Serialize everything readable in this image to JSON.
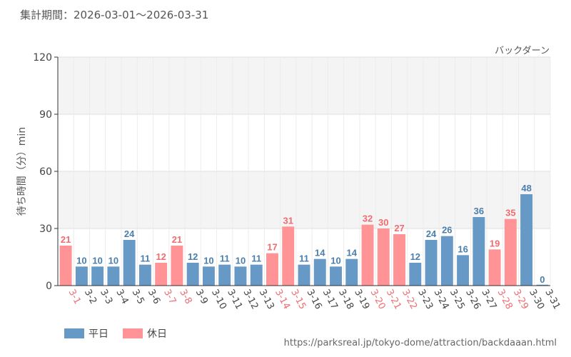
{
  "header": {
    "period": "集計期間：2026-03-01～2026-03-31"
  },
  "legend": {
    "weekday_label": "平日",
    "holiday_label": "休日"
  },
  "source": "https://parksreal.jp/tokyo-dome/attraction/backdaaan.html",
  "colors": {
    "weekday": "#6699c6",
    "holiday": "#ff9396",
    "weekday_text": "#4a7fad",
    "holiday_text": "#f06c70",
    "band": "#f4f4f4",
    "grid": "#dedede"
  },
  "chart_data": {
    "type": "bar",
    "title": "バックダーン",
    "ylabel": "待ち時間（分）min",
    "ylim": [
      0,
      120
    ],
    "yticks": [
      0,
      30,
      60,
      90,
      120
    ],
    "categories": [
      "3-1",
      "3-2",
      "3-3",
      "3-4",
      "3-5",
      "3-6",
      "3-7",
      "3-8",
      "3-9",
      "3-10",
      "3-11",
      "3-12",
      "3-13",
      "3-14",
      "3-15",
      "3-16",
      "3-17",
      "3-18",
      "3-19",
      "3-20",
      "3-21",
      "3-22",
      "3-23",
      "3-24",
      "3-25",
      "3-26",
      "3-27",
      "3-28",
      "3-29",
      "3-30",
      "3-31"
    ],
    "values": [
      21,
      10,
      10,
      10,
      24,
      11,
      12,
      21,
      12,
      10,
      11,
      10,
      11,
      17,
      31,
      11,
      14,
      10,
      14,
      32,
      30,
      27,
      12,
      24,
      26,
      16,
      36,
      19,
      35,
      48,
      0
    ],
    "day_type": [
      "holiday",
      "weekday",
      "weekday",
      "weekday",
      "weekday",
      "weekday",
      "holiday",
      "holiday",
      "weekday",
      "weekday",
      "weekday",
      "weekday",
      "weekday",
      "holiday",
      "holiday",
      "weekday",
      "weekday",
      "weekday",
      "weekday",
      "holiday",
      "holiday",
      "holiday",
      "weekday",
      "weekday",
      "weekday",
      "weekday",
      "weekday",
      "holiday",
      "holiday",
      "weekday",
      "weekday"
    ],
    "series": [
      {
        "name": "平日",
        "type": "weekday"
      },
      {
        "name": "休日",
        "type": "holiday"
      }
    ],
    "grid": true,
    "legend_position": "bottom-left"
  }
}
